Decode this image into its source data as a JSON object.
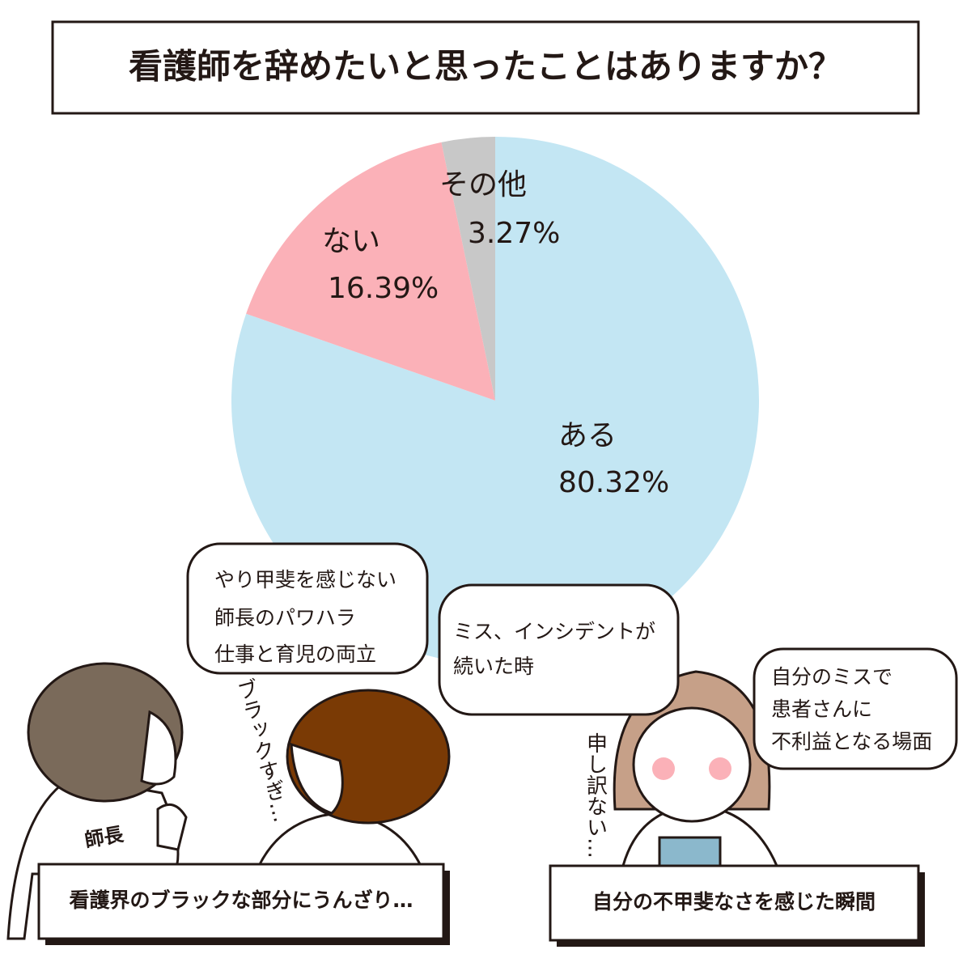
{
  "chart_data": {
    "type": "pie",
    "title": "看護師を辞めたいと思ったことはありますか？",
    "categories": [
      "ある",
      "ない",
      "その他"
    ],
    "values": [
      80.32,
      16.39,
      3.27
    ],
    "value_labels": [
      "80.32%",
      "16.39%",
      "3.27%"
    ],
    "colors": [
      "#c3e6f3",
      "#fbb1b8",
      "#c8c8c8"
    ]
  },
  "bubbles": [
    {
      "lines": [
        "やり甲斐を感じない",
        "師長のパワハラ",
        "仕事と育児の両立"
      ]
    },
    {
      "lines": [
        "ミス、インシデントが",
        "続いた時"
      ]
    },
    {
      "lines": [
        "自分のミスで",
        "患者さんに",
        "不利益となる場面"
      ]
    }
  ],
  "annotations": [
    "ブラックすぎ…",
    "申し訳ない…",
    "師長"
  ],
  "captions": [
    "看護界のブラックな部分にうんざり…",
    "自分の不甲斐なさを感じた瞬間"
  ]
}
